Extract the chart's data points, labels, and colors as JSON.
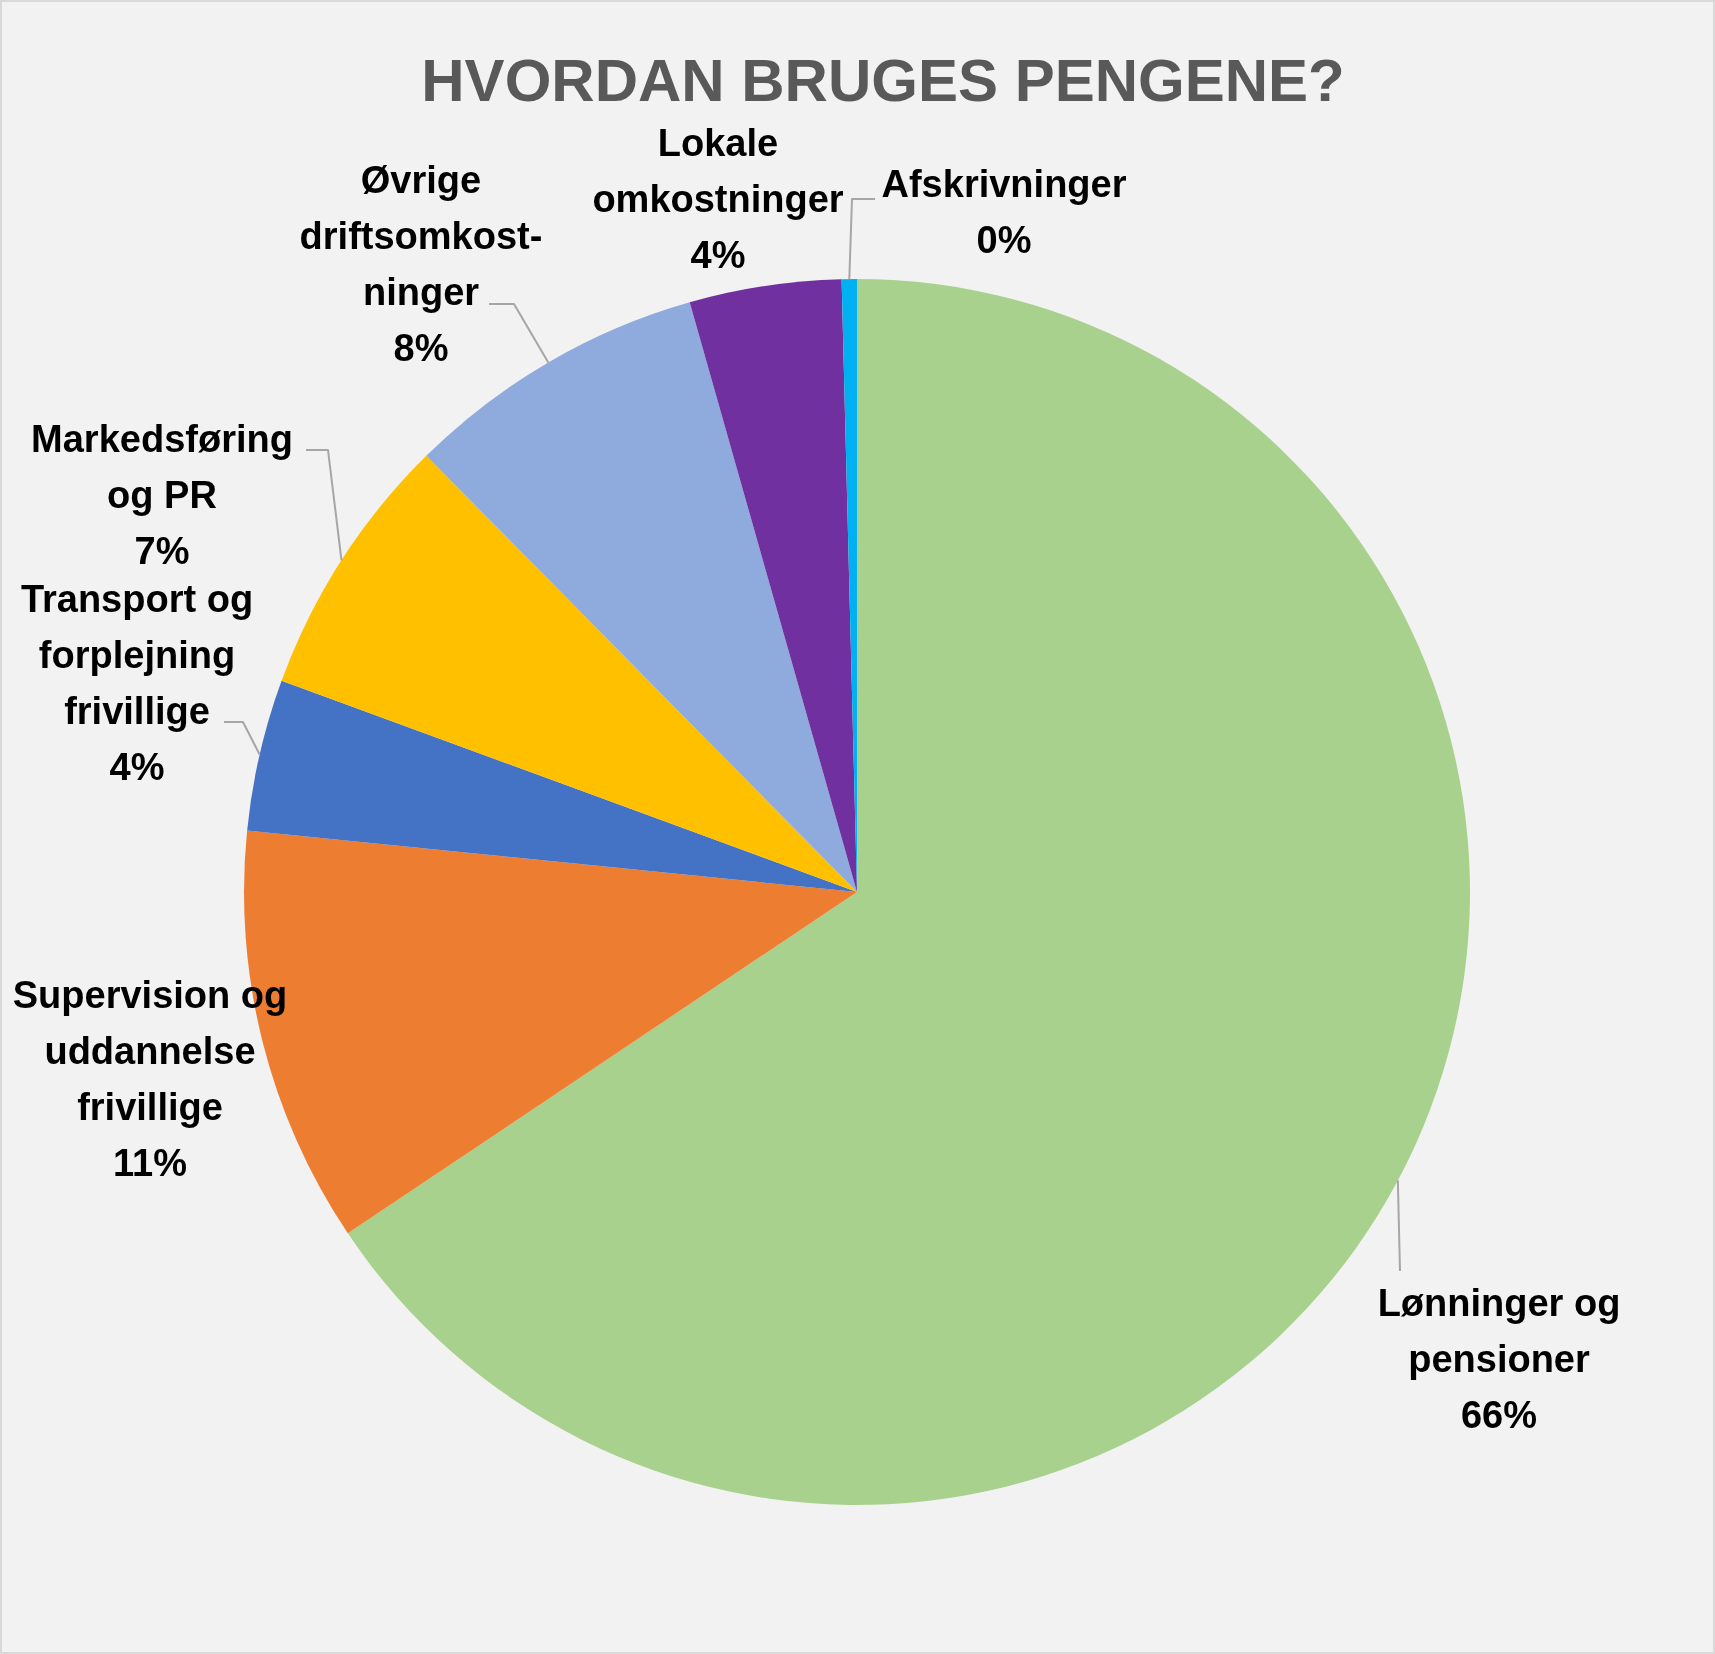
{
  "chart_data": {
    "type": "pie",
    "title": "HVORDAN BRUGES PENGENE?",
    "categories": [
      "Lønninger og pensioner",
      "Supervision og uddannelse frivillige",
      "Transport og forplejning frivillige",
      "Markedsføring og PR",
      "Øvrige driftsomkost-ninger",
      "Lokale omkostninger",
      "Afskrivninger"
    ],
    "values": [
      65.6,
      11,
      4,
      7,
      8,
      4,
      0.4
    ],
    "value_labels": [
      "66%",
      "11%",
      "4%",
      "7%",
      "8%",
      "4%",
      "0%"
    ],
    "colors": [
      "#a9d18e",
      "#ed7d31",
      "#4472c4",
      "#ffc000",
      "#8faadc",
      "#7030a0",
      "#00b0f0"
    ]
  }
}
